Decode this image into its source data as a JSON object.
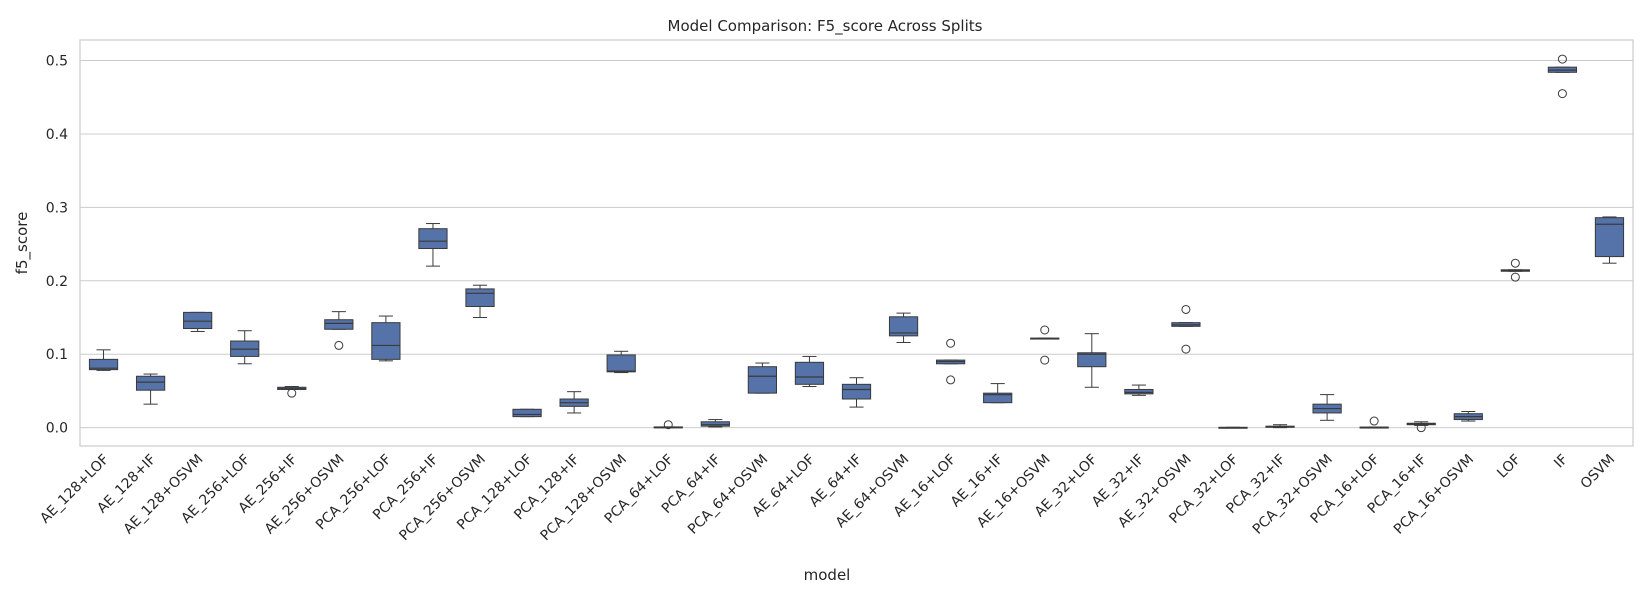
{
  "chart_data": {
    "type": "box",
    "title": "Model Comparison: F5_score Across Splits",
    "xlabel": "model",
    "ylabel": "f5_score",
    "ylim": [
      -0.025,
      0.528
    ],
    "yticks": [
      0.0,
      0.1,
      0.2,
      0.3,
      0.4,
      0.5
    ],
    "ytick_labels": [
      "0.0",
      "0.1",
      "0.2",
      "0.3",
      "0.4",
      "0.5"
    ],
    "grid": true,
    "color": "#5573a8",
    "categories": [
      "AE_128+LOF",
      "AE_128+IF",
      "AE_128+OSVM",
      "AE_256+LOF",
      "AE_256+IF",
      "AE_256+OSVM",
      "PCA_256+LOF",
      "PCA_256+IF",
      "PCA_256+OSVM",
      "PCA_128+LOF",
      "PCA_128+IF",
      "PCA_128+OSVM",
      "PCA_64+LOF",
      "PCA_64+IF",
      "PCA_64+OSVM",
      "AE_64+LOF",
      "AE_64+IF",
      "AE_64+OSVM",
      "AE_16+LOF",
      "AE_16+IF",
      "AE_16+OSVM",
      "AE_32+LOF",
      "AE_32+IF",
      "AE_32+OSVM",
      "PCA_32+LOF",
      "PCA_32+IF",
      "PCA_32+OSVM",
      "PCA_16+LOF",
      "PCA_16+IF",
      "PCA_16+OSVM",
      "LOF",
      "IF",
      "OSVM"
    ],
    "boxes": [
      {
        "min": 0.078,
        "q1": 0.079,
        "median": 0.081,
        "q3": 0.093,
        "max": 0.106,
        "fliers": []
      },
      {
        "min": 0.032,
        "q1": 0.051,
        "median": 0.062,
        "q3": 0.07,
        "max": 0.073,
        "fliers": []
      },
      {
        "min": 0.131,
        "q1": 0.135,
        "median": 0.145,
        "q3": 0.157,
        "max": 0.157,
        "fliers": []
      },
      {
        "min": 0.087,
        "q1": 0.097,
        "median": 0.107,
        "q3": 0.118,
        "max": 0.132,
        "fliers": []
      },
      {
        "min": 0.052,
        "q1": 0.052,
        "median": 0.053,
        "q3": 0.055,
        "max": 0.056,
        "fliers": [
          0.047
        ]
      },
      {
        "min": 0.134,
        "q1": 0.134,
        "median": 0.142,
        "q3": 0.147,
        "max": 0.158,
        "fliers": [
          0.112
        ]
      },
      {
        "min": 0.091,
        "q1": 0.093,
        "median": 0.112,
        "q3": 0.143,
        "max": 0.152,
        "fliers": []
      },
      {
        "min": 0.22,
        "q1": 0.244,
        "median": 0.254,
        "q3": 0.271,
        "max": 0.278,
        "fliers": []
      },
      {
        "min": 0.15,
        "q1": 0.165,
        "median": 0.183,
        "q3": 0.189,
        "max": 0.194,
        "fliers": []
      },
      {
        "min": 0.015,
        "q1": 0.015,
        "median": 0.018,
        "q3": 0.025,
        "max": 0.025,
        "fliers": []
      },
      {
        "min": 0.02,
        "q1": 0.029,
        "median": 0.034,
        "q3": 0.039,
        "max": 0.049,
        "fliers": []
      },
      {
        "min": 0.075,
        "q1": 0.076,
        "median": 0.077,
        "q3": 0.099,
        "max": 0.104,
        "fliers": []
      },
      {
        "min": 0.0,
        "q1": 0.0,
        "median": 0.0005,
        "q3": 0.001,
        "max": 0.001,
        "fliers": [
          0.004
        ]
      },
      {
        "min": 0.001,
        "q1": 0.002,
        "median": 0.004,
        "q3": 0.008,
        "max": 0.011,
        "fliers": []
      },
      {
        "min": 0.047,
        "q1": 0.047,
        "median": 0.07,
        "q3": 0.083,
        "max": 0.088,
        "fliers": []
      },
      {
        "min": 0.056,
        "q1": 0.059,
        "median": 0.069,
        "q3": 0.089,
        "max": 0.097,
        "fliers": []
      },
      {
        "min": 0.028,
        "q1": 0.039,
        "median": 0.052,
        "q3": 0.059,
        "max": 0.068,
        "fliers": []
      },
      {
        "min": 0.116,
        "q1": 0.125,
        "median": 0.129,
        "q3": 0.151,
        "max": 0.156,
        "fliers": []
      },
      {
        "min": 0.087,
        "q1": 0.087,
        "median": 0.09,
        "q3": 0.092,
        "max": 0.092,
        "fliers": [
          0.115,
          0.065
        ]
      },
      {
        "min": 0.034,
        "q1": 0.034,
        "median": 0.045,
        "q3": 0.047,
        "max": 0.06,
        "fliers": []
      },
      {
        "min": 0.121,
        "q1": 0.121,
        "median": 0.121,
        "q3": 0.122,
        "max": 0.122,
        "fliers": [
          0.133,
          0.092
        ]
      },
      {
        "min": 0.055,
        "q1": 0.083,
        "median": 0.1,
        "q3": 0.102,
        "max": 0.128,
        "fliers": []
      },
      {
        "min": 0.044,
        "q1": 0.046,
        "median": 0.048,
        "q3": 0.052,
        "max": 0.058,
        "fliers": []
      },
      {
        "min": 0.138,
        "q1": 0.138,
        "median": 0.14,
        "q3": 0.143,
        "max": 0.143,
        "fliers": [
          0.161,
          0.107
        ]
      },
      {
        "min": 0.0,
        "q1": 0.0,
        "median": 0.0,
        "q3": 0.0005,
        "max": 0.0005,
        "fliers": []
      },
      {
        "min": 0.0,
        "q1": 0.0005,
        "median": 0.001,
        "q3": 0.002,
        "max": 0.004,
        "fliers": []
      },
      {
        "min": 0.01,
        "q1": 0.02,
        "median": 0.026,
        "q3": 0.032,
        "max": 0.045,
        "fliers": []
      },
      {
        "min": 0.0,
        "q1": 0.0,
        "median": 0.0003,
        "q3": 0.0008,
        "max": 0.0008,
        "fliers": [
          0.009
        ]
      },
      {
        "min": 0.003,
        "q1": 0.004,
        "median": 0.005,
        "q3": 0.006,
        "max": 0.008,
        "fliers": [
          0.0
        ]
      },
      {
        "min": 0.009,
        "q1": 0.011,
        "median": 0.015,
        "q3": 0.019,
        "max": 0.022,
        "fliers": []
      },
      {
        "min": 0.213,
        "q1": 0.213,
        "median": 0.214,
        "q3": 0.215,
        "max": 0.215,
        "fliers": [
          0.224,
          0.205
        ]
      },
      {
        "min": 0.484,
        "q1": 0.484,
        "median": 0.487,
        "q3": 0.491,
        "max": 0.491,
        "fliers": [
          0.502,
          0.455
        ]
      },
      {
        "min": 0.224,
        "q1": 0.233,
        "median": 0.277,
        "q3": 0.286,
        "max": 0.287,
        "fliers": []
      }
    ]
  }
}
